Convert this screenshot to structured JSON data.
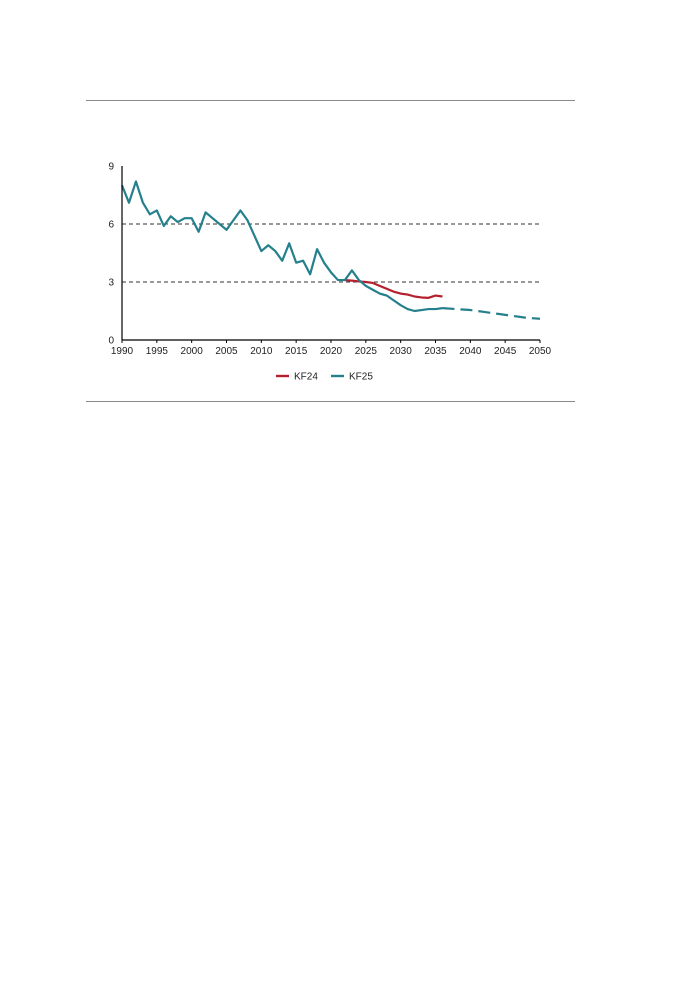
{
  "chart_data": {
    "type": "line",
    "title": "",
    "xlabel": "",
    "ylabel": "",
    "xlim": [
      1990,
      2050
    ],
    "ylim": [
      0,
      9
    ],
    "x_ticks": [
      "1990",
      "1995",
      "2000",
      "2005",
      "2010",
      "2015",
      "2020",
      "2025",
      "2030",
      "2035",
      "2040",
      "2045",
      "2050"
    ],
    "y_ticks": [
      "0",
      "3",
      "6",
      "9"
    ],
    "gridlines_y": [
      3,
      6
    ],
    "grid_style": "dashed",
    "legend_position": "bottom-center",
    "series": [
      {
        "name": "KF24",
        "color": "#b5202e",
        "style": "solid",
        "points": [
          [
            2022,
            3.1
          ],
          [
            2023,
            3.07
          ],
          [
            2024,
            3.03
          ],
          [
            2025,
            3.0
          ],
          [
            2026,
            2.95
          ],
          [
            2027,
            2.8
          ],
          [
            2028,
            2.65
          ],
          [
            2029,
            2.5
          ],
          [
            2030,
            2.4
          ],
          [
            2031,
            2.35
          ],
          [
            2032,
            2.25
          ],
          [
            2033,
            2.2
          ],
          [
            2034,
            2.18
          ],
          [
            2035,
            2.3
          ],
          [
            2036,
            2.25
          ]
        ]
      },
      {
        "name": "KF25",
        "color": "#24808c",
        "style": "solid",
        "points": [
          [
            1990,
            8.0
          ],
          [
            1991,
            7.1
          ],
          [
            1992,
            8.2
          ],
          [
            1993,
            7.1
          ],
          [
            1994,
            6.5
          ],
          [
            1995,
            6.7
          ],
          [
            1996,
            5.9
          ],
          [
            1997,
            6.4
          ],
          [
            1998,
            6.1
          ],
          [
            1999,
            6.3
          ],
          [
            2000,
            6.3
          ],
          [
            2001,
            5.6
          ],
          [
            2002,
            6.6
          ],
          [
            2003,
            6.3
          ],
          [
            2004,
            6.0
          ],
          [
            2005,
            5.7
          ],
          [
            2006,
            6.2
          ],
          [
            2007,
            6.7
          ],
          [
            2008,
            6.2
          ],
          [
            2009,
            5.4
          ],
          [
            2010,
            4.6
          ],
          [
            2011,
            4.9
          ],
          [
            2012,
            4.6
          ],
          [
            2013,
            4.1
          ],
          [
            2014,
            5.0
          ],
          [
            2015,
            4.0
          ],
          [
            2016,
            4.1
          ],
          [
            2017,
            3.4
          ],
          [
            2018,
            4.7
          ],
          [
            2019,
            4.0
          ],
          [
            2020,
            3.5
          ],
          [
            2021,
            3.1
          ],
          [
            2022,
            3.1
          ],
          [
            2023,
            3.6
          ],
          [
            2024,
            3.1
          ],
          [
            2025,
            2.8
          ],
          [
            2026,
            2.6
          ],
          [
            2027,
            2.4
          ],
          [
            2028,
            2.3
          ],
          [
            2029,
            2.05
          ],
          [
            2030,
            1.8
          ],
          [
            2031,
            1.6
          ],
          [
            2032,
            1.5
          ],
          [
            2033,
            1.55
          ],
          [
            2034,
            1.6
          ],
          [
            2035,
            1.6
          ],
          [
            2036,
            1.65
          ]
        ]
      },
      {
        "name": "KF25",
        "color": "#24808c",
        "style": "dashed",
        "points": [
          [
            2036,
            1.65
          ],
          [
            2038,
            1.6
          ],
          [
            2040,
            1.55
          ],
          [
            2042,
            1.45
          ],
          [
            2044,
            1.35
          ],
          [
            2046,
            1.25
          ],
          [
            2048,
            1.15
          ],
          [
            2050,
            1.1
          ]
        ]
      }
    ],
    "legend": [
      {
        "label": "KF24",
        "color": "#b5202e"
      },
      {
        "label": "KF25",
        "color": "#24808c"
      }
    ]
  }
}
